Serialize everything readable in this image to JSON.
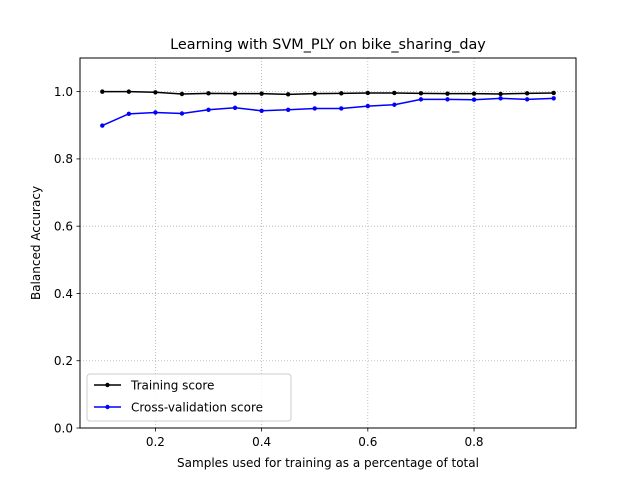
{
  "chart_data": {
    "type": "line",
    "title": "Learning with SVM_PLY on bike_sharing_day",
    "xlabel": "Samples used for training as a percentage of total",
    "ylabel": "Balanced Accuracy",
    "xlim": [
      0.058,
      0.992
    ],
    "ylim": [
      0.0,
      1.1
    ],
    "xticks": [
      0.2,
      0.4,
      0.6,
      0.8
    ],
    "yticks": [
      0.0,
      0.2,
      0.4,
      0.6,
      0.8,
      1.0
    ],
    "xtick_labels": [
      "0.2",
      "0.4",
      "0.6",
      "0.8"
    ],
    "ytick_labels": [
      "0.0",
      "0.2",
      "0.4",
      "0.6",
      "0.8",
      "1.0"
    ],
    "grid": true,
    "legend_position": "lower-left",
    "x": [
      0.1,
      0.15,
      0.2,
      0.25,
      0.3,
      0.35,
      0.4,
      0.45,
      0.5,
      0.55,
      0.6,
      0.65,
      0.7,
      0.75,
      0.8,
      0.85,
      0.9,
      0.95
    ],
    "series": [
      {
        "name": "Training score",
        "color": "#000000",
        "values": [
          1.0,
          1.0,
          0.998,
          0.993,
          0.995,
          0.994,
          0.994,
          0.992,
          0.994,
          0.995,
          0.996,
          0.996,
          0.995,
          0.994,
          0.994,
          0.993,
          0.995,
          0.996
        ]
      },
      {
        "name": "Cross-validation score",
        "color": "#0000ff",
        "values": [
          0.899,
          0.934,
          0.938,
          0.935,
          0.946,
          0.952,
          0.943,
          0.946,
          0.95,
          0.95,
          0.957,
          0.961,
          0.977,
          0.977,
          0.976,
          0.98,
          0.977,
          0.98
        ]
      }
    ]
  }
}
